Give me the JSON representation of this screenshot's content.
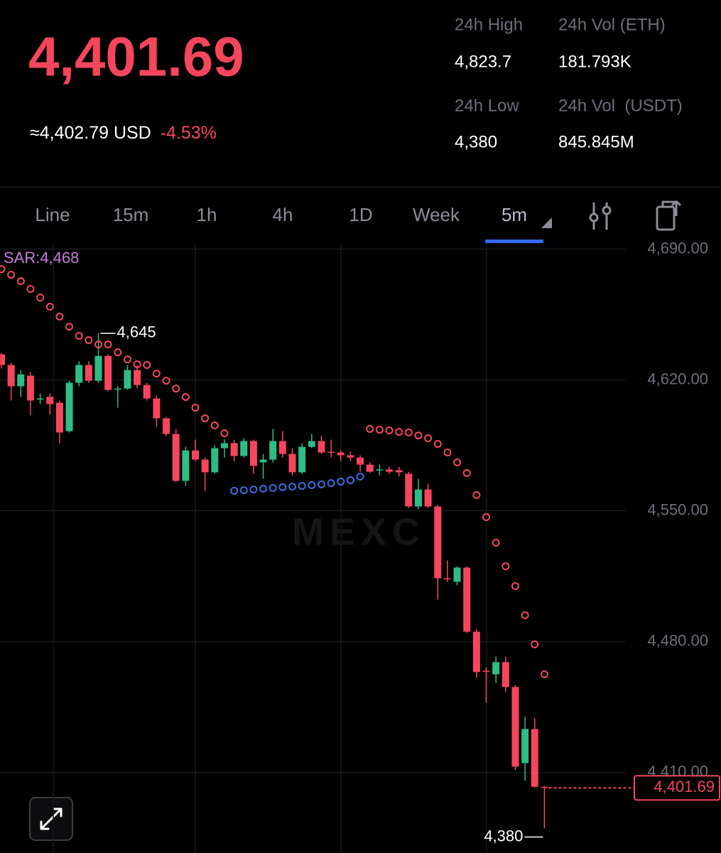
{
  "header": {
    "price": "4,401.69",
    "approx": "≈4,402.79 USD",
    "change": "-4.53%"
  },
  "stats": [
    {
      "label": "24h High",
      "value": "4,823.7"
    },
    {
      "label": "24h Vol (ETH)",
      "value": "181.793K"
    },
    {
      "label": "24h Low",
      "value": "4,380"
    },
    {
      "label": "24h Vol  (USDT)",
      "value": "845.845M"
    }
  ],
  "tabs": [
    "Line",
    "15m",
    "1h",
    "4h",
    "1D",
    "Week",
    "5m"
  ],
  "active_tab": "5m",
  "chart_data": {
    "type": "candlestick",
    "watermark": "MEXC",
    "sar_label": "SAR:4,468",
    "up_color": "#2ebd85",
    "down_color": "#f6465d",
    "sar_up_color": "#3b6fe0",
    "sar_down_color": "#f6465d",
    "grid": true,
    "ylim": [
      4368,
      4694
    ],
    "yticks": [
      {
        "value": 4690,
        "label": "4,690.00"
      },
      {
        "value": 4620,
        "label": "4,620.00"
      },
      {
        "value": 4550,
        "label": "4,550.00"
      },
      {
        "value": 4480,
        "label": "4,480.00"
      },
      {
        "value": 4410,
        "label": "4,410.00"
      }
    ],
    "open": [
      4633.7,
      4628.0,
      4616.6,
      4622.3,
      4609.7,
      4610.9,
      4607.8,
      4592.6,
      4618.5,
      4628.0,
      4619.6,
      4632.9,
      4615.0,
      4615.4,
      4625.3,
      4617.3,
      4610.1,
      4599.5,
      4591.1,
      4566.0,
      4582.3,
      4577.4,
      4570.6,
      4583.5,
      4586.2,
      4579.3,
      4587.3,
      4575.9,
      4577.4,
      4587.3,
      4580.4,
      4570.6,
      4584.2,
      4587.3,
      4581.6,
      4581.2,
      4579.7,
      4578.5,
      4574.7,
      4571.7,
      4572.1,
      4571.7,
      4569.8,
      4552.3,
      4561.4,
      4552.3,
      4513.9,
      4512.0,
      4519.6,
      4485.3,
      4464.4,
      4462.5,
      4469.0,
      4455.7,
      4415.0,
      4433.2,
      4402.3
    ],
    "high": [
      4634.5,
      4629.1,
      4625.3,
      4624.2,
      4612.8,
      4612.8,
      4609.0,
      4619.6,
      4629.9,
      4629.9,
      4645,
      4633.7,
      4616.6,
      4628.0,
      4628.0,
      4618.5,
      4611.6,
      4600.2,
      4593.8,
      4584.2,
      4588.1,
      4578.5,
      4585.0,
      4588.1,
      4588.1,
      4588.8,
      4588.1,
      4580.4,
      4593.8,
      4592.6,
      4583.5,
      4586.2,
      4591.1,
      4590.0,
      4588.1,
      4582.3,
      4581.6,
      4579.7,
      4575.9,
      4574.7,
      4573.6,
      4573.6,
      4570.9,
      4567.1,
      4564.5,
      4553.1,
      4523.4,
      4520.3,
      4520.3,
      4486.5,
      4466.3,
      4472.0,
      4472.0,
      4456.8,
      4439.7,
      4438.9,
      4402.6
    ],
    "low": [
      4626.1,
      4609.0,
      4610.9,
      4601.4,
      4607.1,
      4601.4,
      4586.2,
      4591.9,
      4616.6,
      4618.5,
      4618.5,
      4613.9,
      4605.2,
      4614.7,
      4615.4,
      4609.0,
      4594.9,
      4590.0,
      4565.2,
      4563.3,
      4576.6,
      4560.7,
      4569.8,
      4578.5,
      4576.6,
      4578.5,
      4569.8,
      4567.1,
      4575.9,
      4578.5,
      4569.0,
      4569.8,
      4583.5,
      4580.4,
      4578.5,
      4576.6,
      4576.6,
      4570.9,
      4570.2,
      4569.0,
      4569.8,
      4568.3,
      4551.5,
      4550.8,
      4551.5,
      4502.5,
      4512.0,
      4510.1,
      4484.6,
      4460.6,
      4447.3,
      4458.0,
      4453.0,
      4411.2,
      4405.5,
      4401.8,
      4380
    ],
    "close": [
      4628.0,
      4616.6,
      4623.0,
      4609.0,
      4610.1,
      4607.1,
      4591.9,
      4618.5,
      4628.0,
      4619.6,
      4632.9,
      4614.7,
      4615.4,
      4625.3,
      4617.3,
      4610.1,
      4599.5,
      4591.1,
      4566.0,
      4582.3,
      4577.4,
      4570.6,
      4583.5,
      4586.2,
      4579.3,
      4587.3,
      4574.0,
      4577.4,
      4587.3,
      4580.4,
      4570.6,
      4584.2,
      4587.3,
      4581.2,
      4581.2,
      4579.7,
      4578.5,
      4574.7,
      4570.9,
      4572.1,
      4570.9,
      4570.6,
      4552.3,
      4561.4,
      4552.3,
      4513.9,
      4513.5,
      4519.6,
      4485.3,
      4463.7,
      4464.0,
      4469.0,
      4455.7,
      4413.1,
      4433.2,
      4402.3,
      4401.69
    ],
    "sar": [
      4679.3,
      4676.3,
      4672.9,
      4668.7,
      4664.1,
      4659.2,
      4653.9,
      4648.5,
      4643.6,
      4641.3,
      4639.0,
      4639.0,
      4634.8,
      4631.0,
      4628.4,
      4628.0,
      4623.4,
      4619.6,
      4615.4,
      4610.9,
      4605.2,
      4599.5,
      4595.7,
      4591.5,
      4560.7,
      4561.0,
      4561.4,
      4561.8,
      4562.2,
      4562.6,
      4562.9,
      4563.3,
      4563.7,
      4564.1,
      4564.8,
      4565.6,
      4566.4,
      4568.3,
      4593.8,
      4593.4,
      4593.0,
      4592.2,
      4591.9,
      4590.3,
      4588.8,
      4585.8,
      4581.2,
      4575.9,
      4570.2,
      4558.4,
      4546.6,
      4532.9,
      4520.3,
      4509.7,
      4494.1,
      4478.5,
      4462.5
    ],
    "high_marker": {
      "value": 4645,
      "label": "4,645"
    },
    "low_marker": {
      "value": 4380,
      "label": "4,380"
    },
    "last_price": {
      "value": 4401.69,
      "label": "4,401.69"
    }
  }
}
